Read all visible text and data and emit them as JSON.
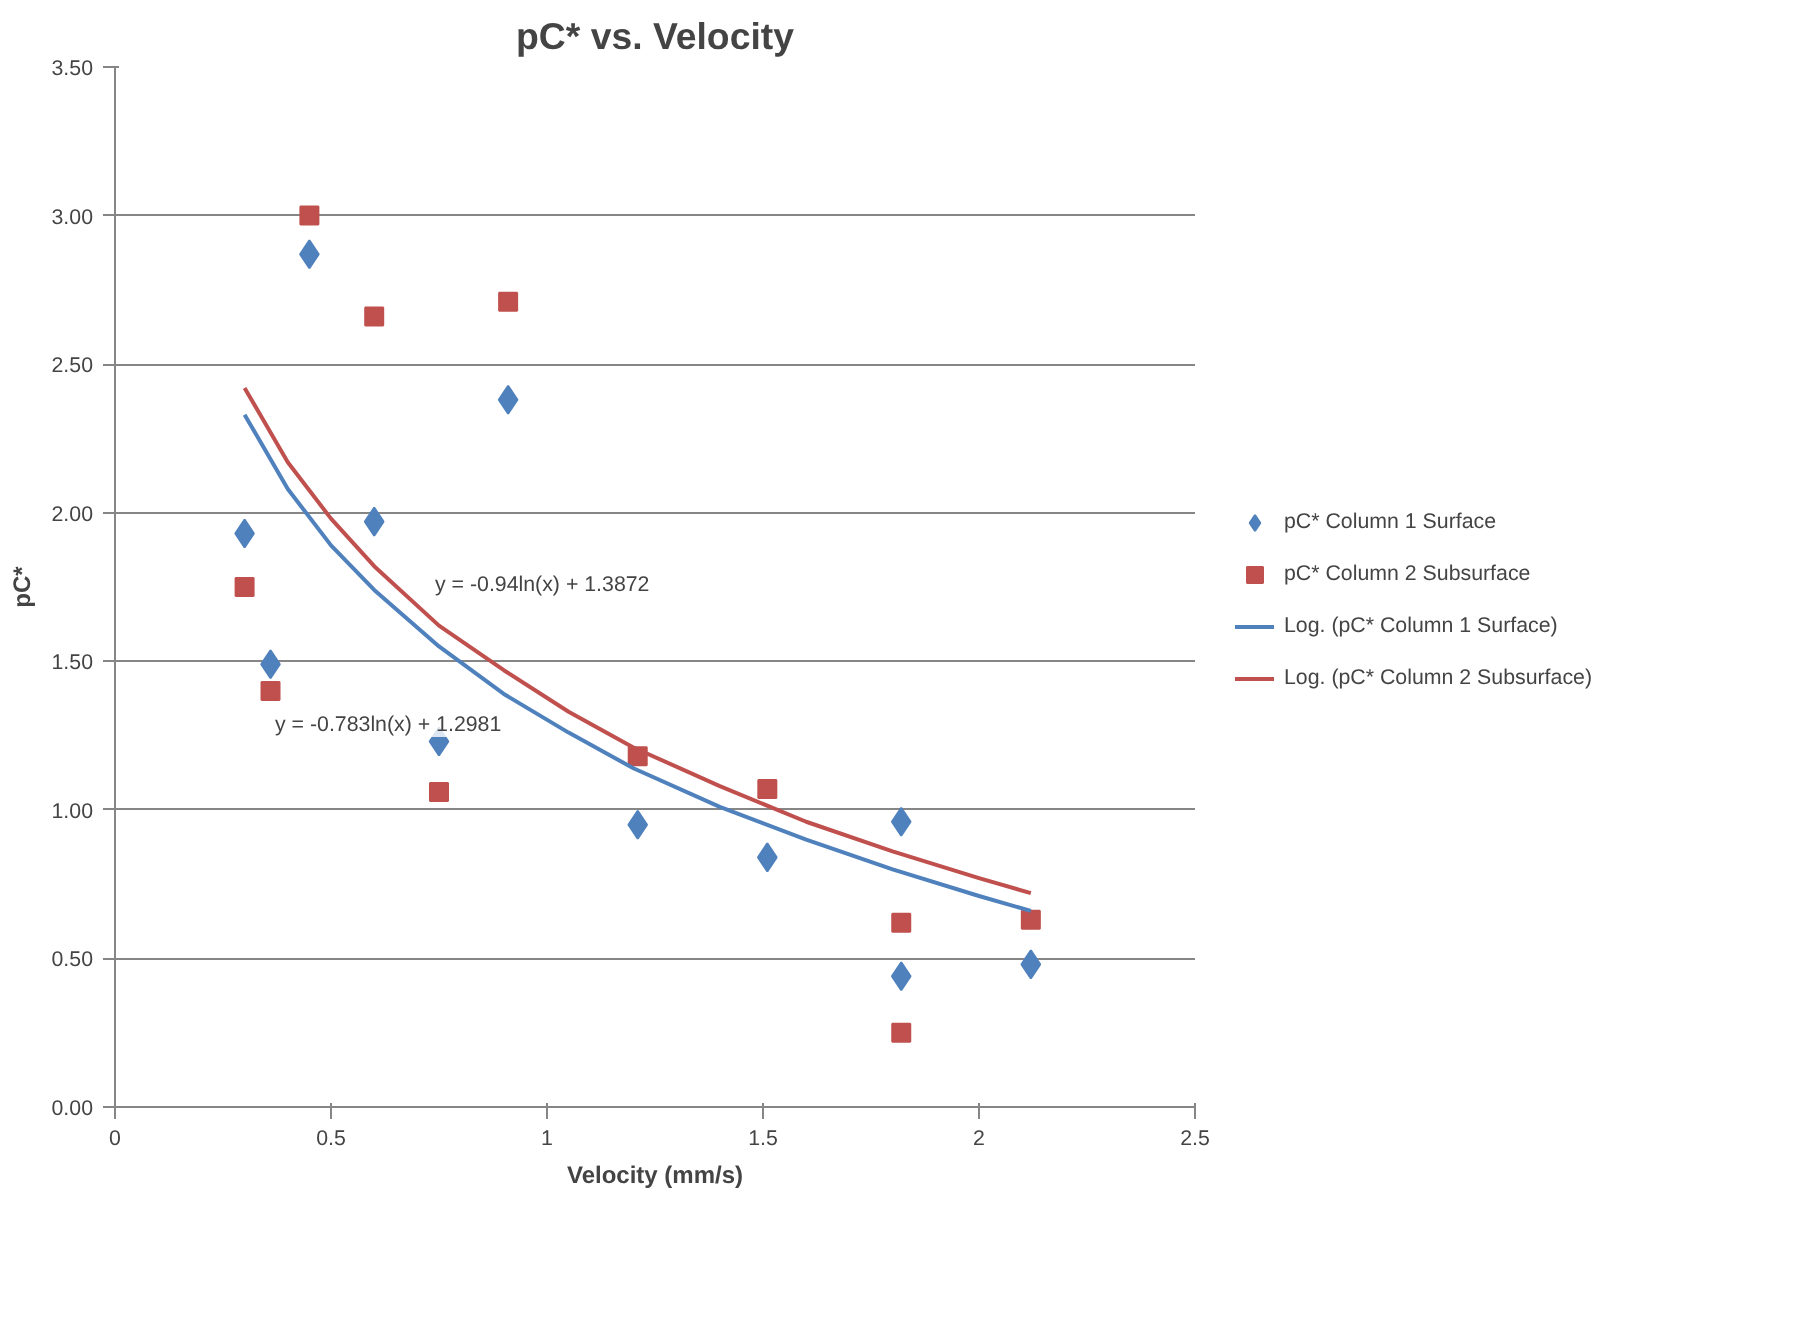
{
  "chart_data": {
    "type": "scatter",
    "title": "pC* vs. Velocity",
    "xlabel": "Velocity (mm/s)",
    "ylabel": "pC*",
    "xlim": [
      0,
      2.5
    ],
    "xticks": [
      0,
      0.5,
      1,
      1.5,
      2,
      2.5
    ],
    "ylim": [
      0,
      3.5
    ],
    "yticks": [
      {
        "value": 0,
        "label": "0.00"
      },
      {
        "value": 0.5,
        "label": "0.50"
      },
      {
        "value": 1,
        "label": "1.00"
      },
      {
        "value": 1.5,
        "label": "1.50"
      },
      {
        "value": 2,
        "label": "2.00"
      },
      {
        "value": 2.5,
        "label": "2.50"
      },
      {
        "value": 3,
        "label": "3.00"
      },
      {
        "value": 3.5,
        "label": "3.50"
      }
    ],
    "grid": "y",
    "legend": "right",
    "series": [
      {
        "name": "pC* Column 1 Surface",
        "marker": "diamond",
        "color": "#4f81bd",
        "x": [
          0.3,
          0.36,
          0.45,
          0.6,
          0.75,
          0.91,
          1.21,
          1.51,
          1.82,
          1.82,
          2.12
        ],
        "values": [
          1.93,
          1.49,
          2.87,
          1.97,
          1.23,
          2.38,
          0.95,
          0.84,
          0.96,
          0.44,
          0.48
        ]
      },
      {
        "name": "pC* Column 2 Subsurface",
        "marker": "square",
        "color": "#c0504d",
        "x": [
          0.3,
          0.36,
          0.45,
          0.6,
          0.75,
          0.91,
          1.21,
          1.51,
          1.82,
          1.82,
          2.12
        ],
        "values": [
          1.75,
          1.4,
          3.0,
          2.66,
          1.06,
          2.71,
          1.18,
          1.07,
          0.62,
          0.25,
          0.63
        ]
      },
      {
        "name": "Log. (pC* Column 1 Surface)",
        "type": "line",
        "line_style": "solid",
        "color": "#4f81bd",
        "x": [
          0.3,
          0.4,
          0.5,
          0.6,
          0.75,
          0.9,
          1.05,
          1.2,
          1.4,
          1.6,
          1.8,
          2.0,
          2.12
        ],
        "values": [
          2.33,
          2.08,
          1.89,
          1.74,
          1.55,
          1.39,
          1.26,
          1.14,
          1.01,
          0.9,
          0.8,
          0.71,
          0.66
        ]
      },
      {
        "name": "Log. (pC* Column 2 Subsurface)",
        "type": "line",
        "line_style": "solid",
        "color": "#c0504d",
        "x": [
          0.3,
          0.4,
          0.5,
          0.6,
          0.75,
          0.9,
          1.05,
          1.2,
          1.4,
          1.6,
          1.8,
          2.0,
          2.12
        ],
        "values": [
          2.42,
          2.17,
          1.98,
          1.82,
          1.62,
          1.47,
          1.33,
          1.21,
          1.08,
          0.96,
          0.86,
          0.77,
          0.72
        ]
      }
    ],
    "annotations": [
      "y = -0.94ln(x) + 1.3872",
      "y = -0.783ln(x) + 1.2981"
    ]
  }
}
